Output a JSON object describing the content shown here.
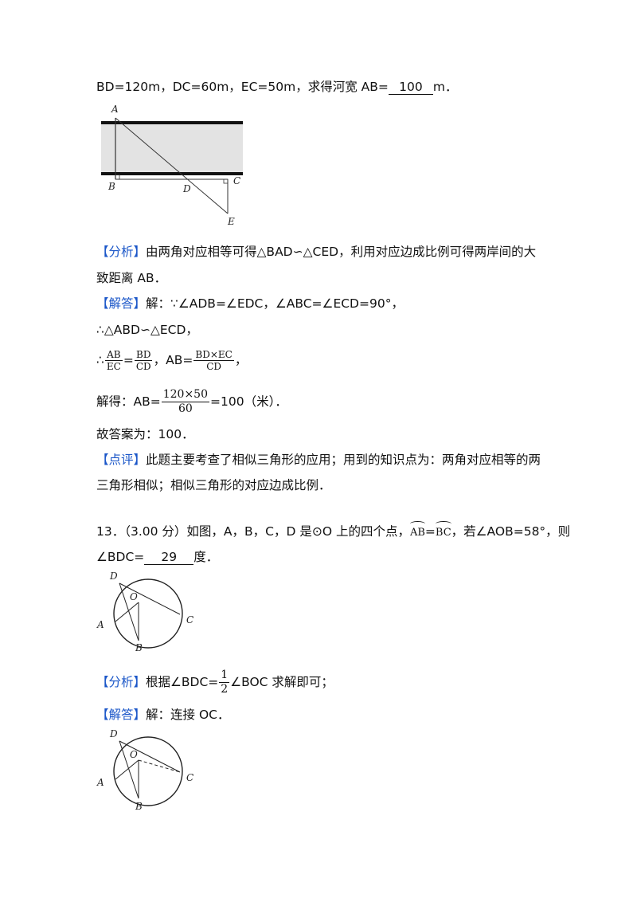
{
  "l1": {
    "pre": "BD=120m，DC=60m，EC=50m，求得河宽 AB=",
    "ans": "100",
    "post": "m．"
  },
  "fig1": {
    "A": "A",
    "B": "B",
    "C": "C",
    "D": "D",
    "E": "E"
  },
  "analysis1": {
    "tag": "【分析】",
    "t1": "由两角对应相等可得△BAD∽△CED，利用对应边成比例可得两岸间的大",
    "t2": "致距离 AB．"
  },
  "sol1": {
    "tag": "【解答】",
    "t1": "解：∵∠ADB=∠EDC，∠ABC=∠ECD=90°，",
    "t2": "∴△ABD∽△ECD，",
    "therefore": "∴",
    "f1n": "AB",
    "f1d": "EC",
    "eq": "=",
    "f2n": "BD",
    "f2d": "CD",
    "ab": "，AB=",
    "f3n": "BD×EC",
    "f3d": "CD",
    "comma": "，",
    "solve": "解得：AB=",
    "f4n": "120×50",
    "f4d": "60",
    "res": "=100（米）．",
    "final": "故答案为：100．"
  },
  "review1": {
    "tag": "【点评】",
    "t1": "此题主要考查了相似三角形的应用；用到的知识点为：两角对应相等的两",
    "t2": "三角形相似；相似三角形的对应边成比例．"
  },
  "q13": {
    "t1": "13．（3.00 分）如图，A，B，C，D 是⊙O 上的四个点，",
    "arc1": "AB",
    "eqs": "=",
    "arc2": "BC",
    "t1b": "，若∠AOB=58°，则",
    "t2a": "∠BDC=",
    "ans": "29",
    "t2b": "度．"
  },
  "fig2": {
    "D": "D",
    "O": "O",
    "A": "A",
    "B": "B",
    "C": "C"
  },
  "analysis2": {
    "tag": "【分析】",
    "t1": "根据∠BDC=",
    "fn": "1",
    "fd": "2",
    "t2": "∠BOC 求解即可；"
  },
  "sol2": {
    "tag": "【解答】",
    "t1": "解：连接 OC．"
  },
  "fig3": {
    "D": "D",
    "O": "O",
    "A": "A",
    "B": "B",
    "C": "C"
  }
}
